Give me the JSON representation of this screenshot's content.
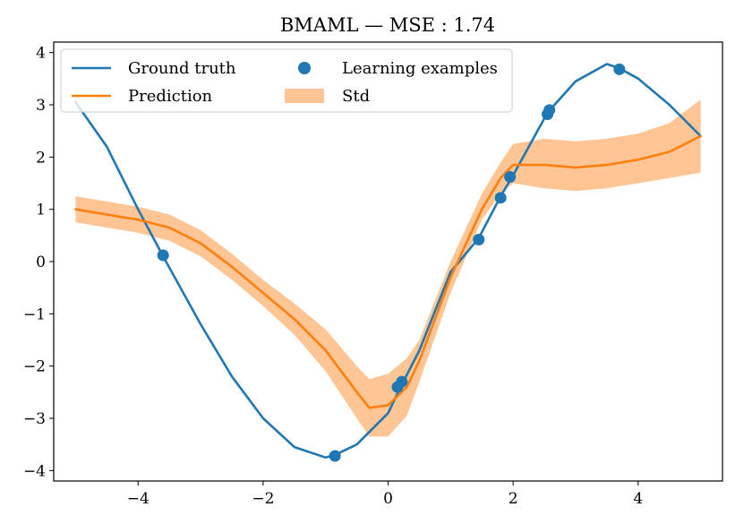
{
  "chart_data": {
    "type": "line",
    "title": "BMAML — MSE : 1.74",
    "xlabel": "",
    "ylabel": "",
    "xlim": [
      -5.35,
      5.35
    ],
    "ylim": [
      -4.2,
      4.2
    ],
    "xticks": [
      -4,
      -2,
      0,
      2,
      4
    ],
    "xtick_labels": [
      "−4",
      "−2",
      "0",
      "2",
      "4"
    ],
    "yticks": [
      -4,
      -3,
      -2,
      -1,
      0,
      1,
      2,
      3,
      4
    ],
    "ytick_labels": [
      "−4",
      "−3",
      "−2",
      "−1",
      "0",
      "1",
      "2",
      "3",
      "4"
    ],
    "legend_position": "top-left",
    "colors": {
      "ground_truth": "#1f77b4",
      "prediction": "#ff7f0e",
      "std_fill": "#ffc594",
      "examples": "#1f77b4"
    },
    "series": [
      {
        "name": "Ground truth",
        "kind": "line",
        "x": [
          -5.0,
          -4.5,
          -4.0,
          -3.6,
          -3.0,
          -2.5,
          -2.0,
          -1.5,
          -1.0,
          -0.85,
          -0.5,
          0.0,
          0.2,
          0.5,
          1.0,
          1.45,
          1.8,
          2.0,
          2.55,
          3.0,
          3.5,
          3.7,
          4.0,
          4.5,
          5.0
        ],
        "y": [
          3.05,
          2.2,
          1.0,
          0.1,
          -1.2,
          -2.2,
          -3.0,
          -3.55,
          -3.75,
          -3.7,
          -3.5,
          -2.9,
          -2.4,
          -1.7,
          -0.2,
          0.45,
          1.25,
          1.65,
          2.85,
          3.45,
          3.78,
          3.7,
          3.5,
          3.0,
          2.4
        ]
      },
      {
        "name": "Prediction",
        "kind": "line",
        "x": [
          -5.0,
          -4.5,
          -4.0,
          -3.5,
          -3.0,
          -2.5,
          -2.0,
          -1.5,
          -1.0,
          -0.5,
          -0.3,
          0.0,
          0.3,
          0.5,
          1.0,
          1.5,
          1.8,
          2.0,
          2.5,
          3.0,
          3.5,
          4.0,
          4.5,
          5.0
        ],
        "y": [
          1.0,
          0.9,
          0.8,
          0.65,
          0.35,
          -0.1,
          -0.6,
          -1.1,
          -1.7,
          -2.5,
          -2.8,
          -2.75,
          -2.4,
          -1.9,
          -0.3,
          1.0,
          1.6,
          1.85,
          1.85,
          1.8,
          1.85,
          1.95,
          2.1,
          2.4
        ]
      },
      {
        "name": "Std",
        "kind": "band",
        "x": [
          -5.0,
          -4.5,
          -4.0,
          -3.5,
          -3.0,
          -2.5,
          -2.0,
          -1.5,
          -1.0,
          -0.5,
          -0.3,
          0.0,
          0.3,
          0.5,
          1.0,
          1.5,
          1.8,
          2.0,
          2.5,
          3.0,
          3.5,
          4.0,
          4.5,
          5.0
        ],
        "lower": [
          0.75,
          0.65,
          0.55,
          0.4,
          0.1,
          -0.35,
          -0.85,
          -1.4,
          -2.1,
          -3.0,
          -3.35,
          -3.35,
          -2.95,
          -2.3,
          -0.6,
          0.8,
          1.3,
          1.5,
          1.4,
          1.35,
          1.4,
          1.5,
          1.6,
          1.7
        ],
        "upper": [
          1.25,
          1.15,
          1.05,
          0.9,
          0.6,
          0.15,
          -0.35,
          -0.8,
          -1.3,
          -2.0,
          -2.25,
          -2.15,
          -1.85,
          -1.5,
          0.0,
          1.3,
          1.9,
          2.25,
          2.35,
          2.3,
          2.35,
          2.45,
          2.65,
          3.1
        ]
      },
      {
        "name": "Learning examples",
        "kind": "scatter",
        "x": [
          -3.6,
          -0.85,
          0.15,
          0.22,
          1.45,
          1.8,
          1.95,
          2.55,
          2.58,
          3.7
        ],
        "y": [
          0.12,
          -3.72,
          -2.4,
          -2.3,
          0.42,
          1.22,
          1.62,
          2.82,
          2.9,
          3.68
        ]
      }
    ],
    "legend": [
      {
        "label": "Ground truth",
        "marker": "line",
        "color_key": "ground_truth"
      },
      {
        "label": "Learning examples",
        "marker": "dot",
        "color_key": "examples"
      },
      {
        "label": "Prediction",
        "marker": "line",
        "color_key": "prediction"
      },
      {
        "label": "Std",
        "marker": "patch",
        "color_key": "std_fill"
      }
    ]
  }
}
